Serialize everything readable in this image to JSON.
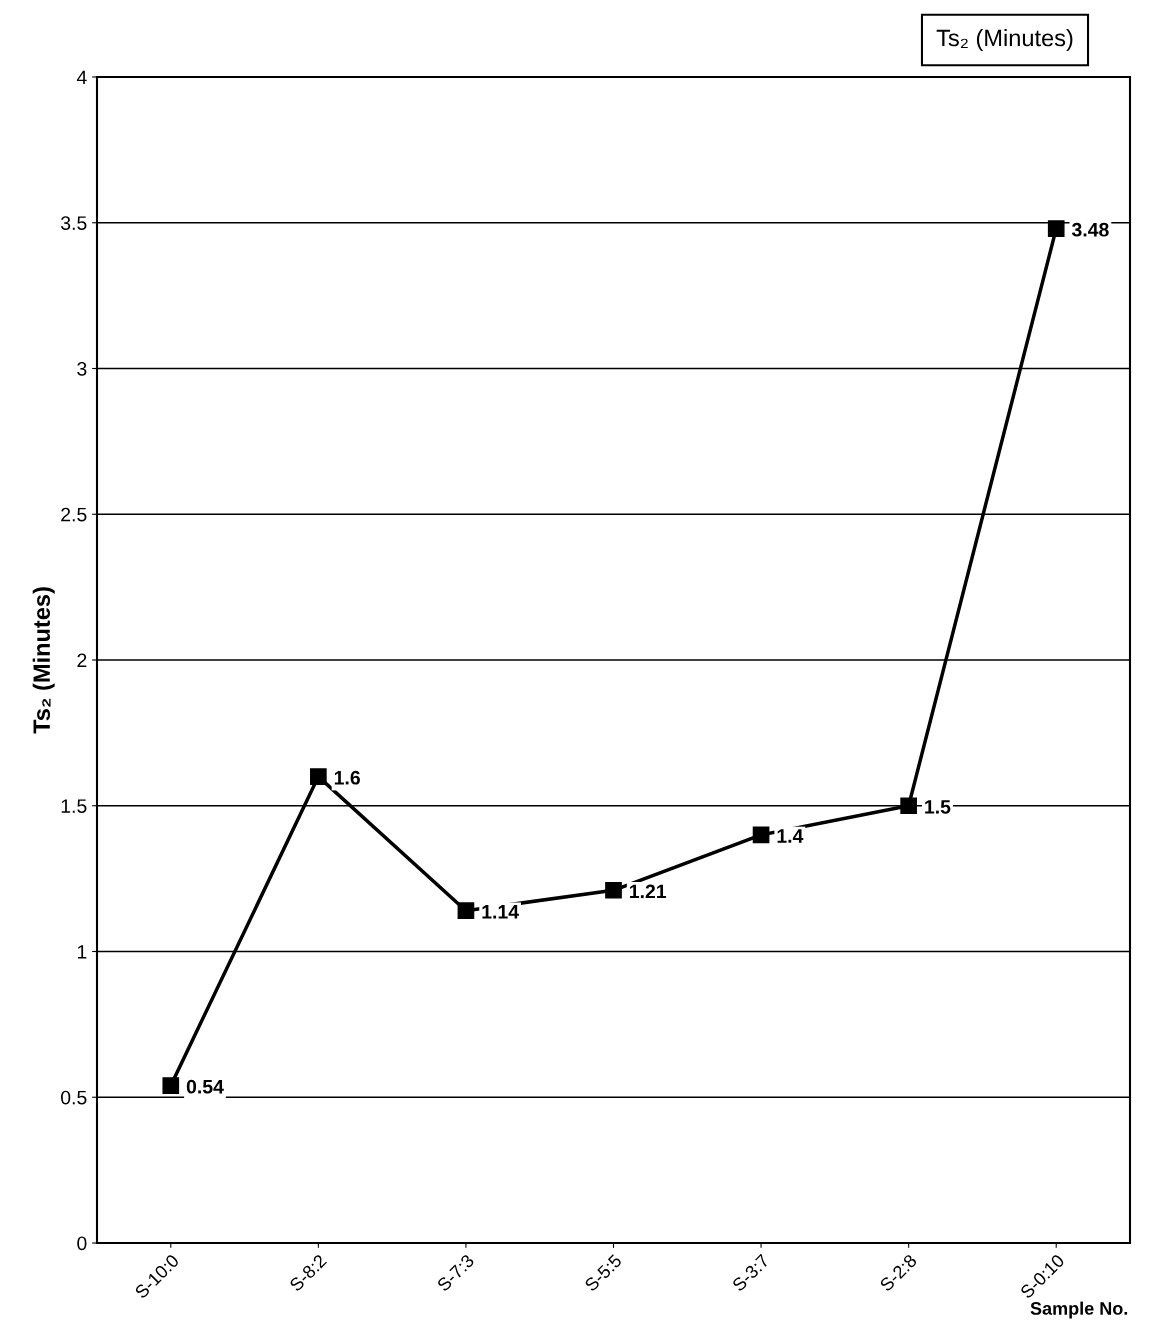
{
  "chart_data": {
    "type": "line",
    "title": "Ts₂ (Minutes)",
    "ylabel": "Ts₂ (Minutes)",
    "xlabel": "Sample No.",
    "categories": [
      "S-10:0",
      "S-8:2",
      "S-7:3",
      "S-5:5",
      "S-3:7",
      "S-2:8",
      "S-0:10"
    ],
    "series": [
      {
        "color": "#000000",
        "values": [
          0.54,
          1.6,
          1.14,
          1.21,
          1.4,
          1.5,
          3.48
        ]
      }
    ],
    "ylim": [
      0,
      4
    ],
    "yticks": [
      0,
      0.5,
      1,
      1.5,
      2,
      2.5,
      3,
      3.5,
      4
    ],
    "grid": "y",
    "marker": "square",
    "line_style": "solid",
    "data_labels": true
  }
}
